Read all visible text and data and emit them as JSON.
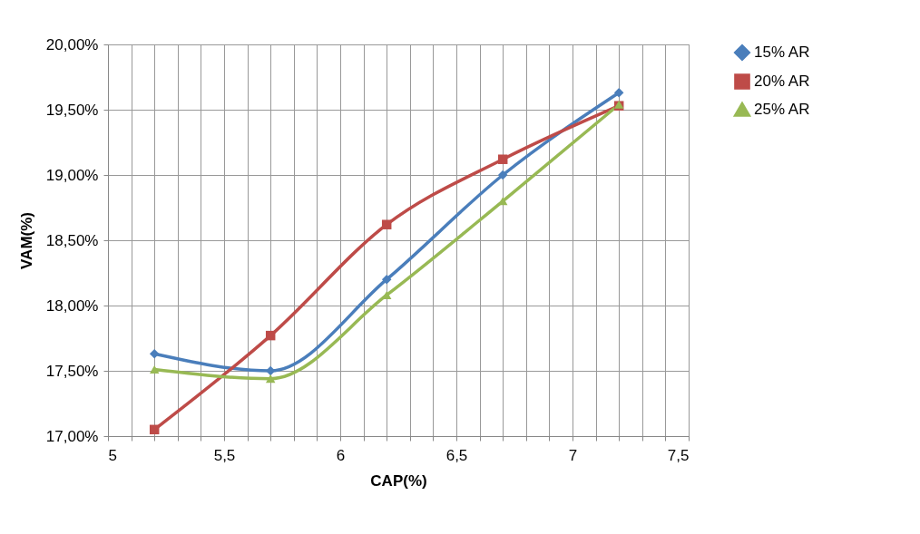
{
  "chart_data": {
    "type": "line",
    "xlabel": "CAP(%)",
    "ylabel": "VAM(%)",
    "xlim": [
      5,
      7.5
    ],
    "xticks": [
      5,
      {
        "value": 5.1,
        "label": null
      },
      {
        "value": 5.2,
        "label": null
      },
      {
        "value": 5.3,
        "label": null
      },
      {
        "value": 5.4,
        "label": null
      },
      {
        "value": 5.5,
        "label": "5,5"
      },
      {
        "value": 5.6,
        "label": null
      },
      {
        "value": 5.7,
        "label": null
      },
      {
        "value": 5.8,
        "label": null
      },
      {
        "value": 5.9,
        "label": null
      },
      6,
      {
        "value": 6.1,
        "label": null
      },
      {
        "value": 6.2,
        "label": null
      },
      {
        "value": 6.3,
        "label": null
      },
      {
        "value": 6.4,
        "label": null
      },
      {
        "value": 6.5,
        "label": "6,5"
      },
      {
        "value": 6.6,
        "label": null
      },
      {
        "value": 6.7,
        "label": null
      },
      {
        "value": 6.8,
        "label": null
      },
      {
        "value": 6.9,
        "label": null
      },
      7,
      {
        "value": 7.1,
        "label": null
      },
      {
        "value": 7.2,
        "label": null
      },
      {
        "value": 7.3,
        "label": null
      },
      {
        "value": 7.4,
        "label": null
      },
      {
        "value": 7.5,
        "label": "7,5"
      }
    ],
    "ylim": [
      17,
      20
    ],
    "yticks": [
      {
        "value": 17,
        "label": "17,00%"
      },
      {
        "value": 17.5,
        "label": "17,50%"
      },
      {
        "value": 18,
        "label": "18,00%"
      },
      {
        "value": 18.5,
        "label": "18,50%"
      },
      {
        "value": 19,
        "label": "19,00%"
      },
      {
        "value": 19.5,
        "label": "19,50%"
      },
      {
        "value": 20,
        "label": "20,00%"
      }
    ],
    "grid": true,
    "legend": "right",
    "line_style": "solid",
    "x": [
      5.2,
      5.7,
      6.2,
      6.7,
      7.2
    ],
    "series": [
      {
        "name": "15% AR",
        "color": "#4a7ebb",
        "marker": "diamond",
        "values": [
          17.63,
          17.5,
          18.2,
          19.0,
          19.63
        ]
      },
      {
        "name": "20% AR",
        "color": "#be4b48",
        "marker": "square",
        "values": [
          17.05,
          17.77,
          18.62,
          19.12,
          19.53
        ]
      },
      {
        "name": "25% AR",
        "color": "#98b954",
        "marker": "triangle",
        "values": [
          17.51,
          17.44,
          18.08,
          18.8,
          19.54
        ]
      }
    ]
  }
}
